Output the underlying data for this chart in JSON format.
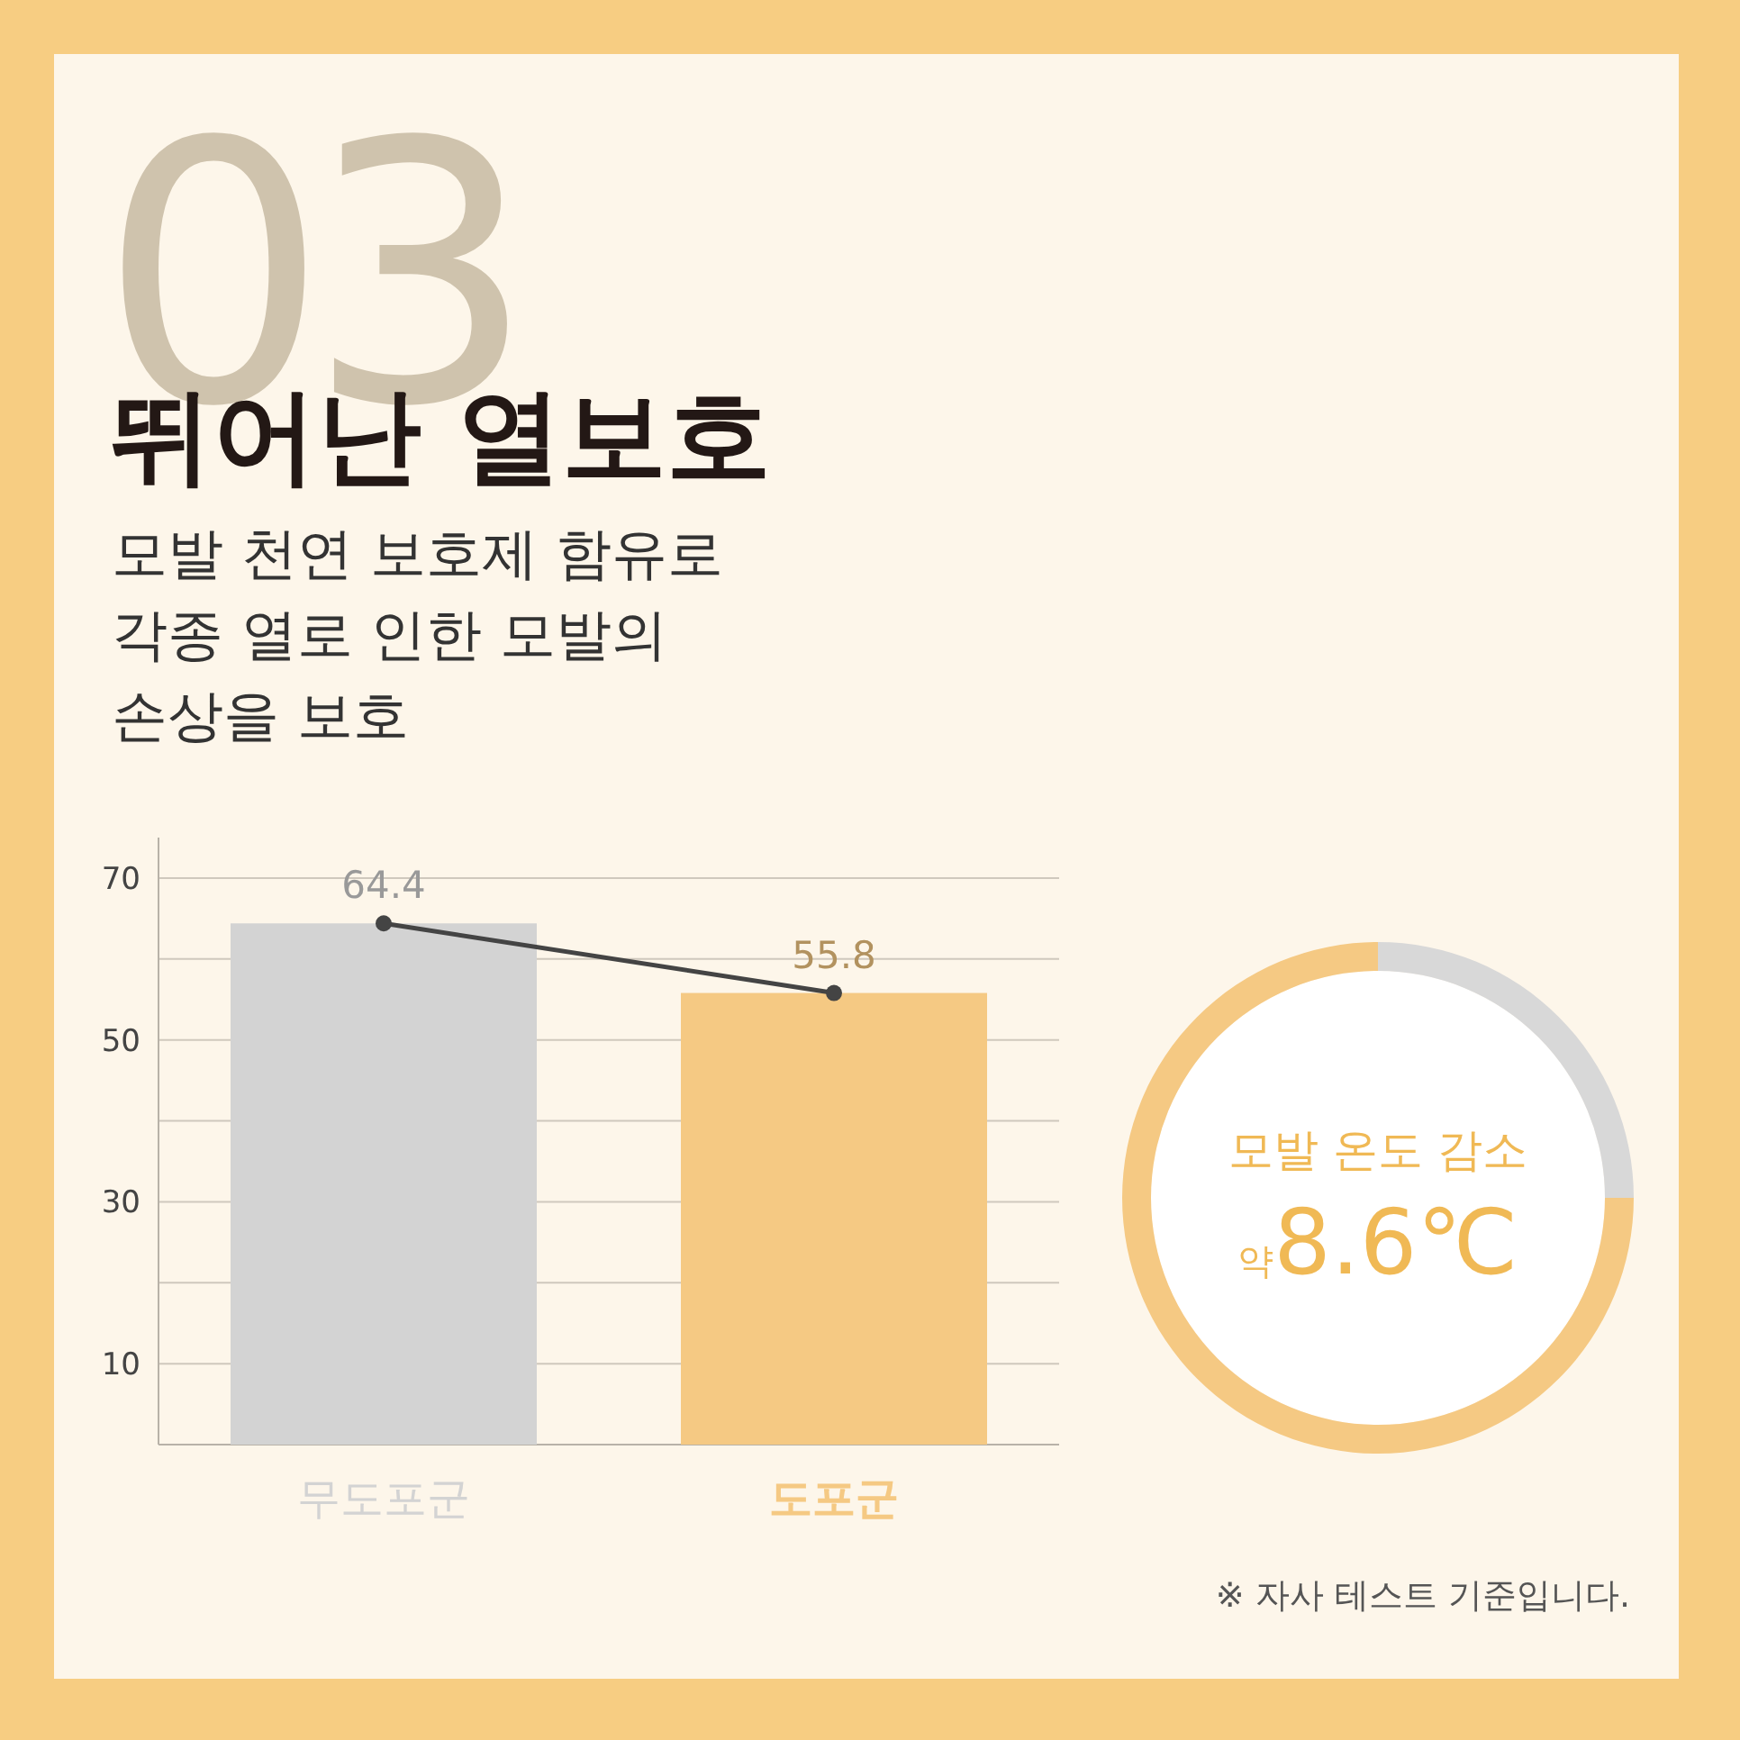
{
  "chart_data": [
    {
      "type": "bar",
      "title": "뛰어난 열보호",
      "subtitle": "모발 천연 보호제 함유로\n각종 열로 인한 모발의\n손상을 보호",
      "categories": [
        "무도포군",
        "도포군"
      ],
      "series": [
        {
          "type": "bar",
          "colors": [
            "#d3d3d3",
            "#f5c983"
          ],
          "values": [
            64.4,
            55.8
          ]
        },
        {
          "type": "line",
          "color": "#444444",
          "values": [
            64.4,
            55.8
          ],
          "marker": "circle"
        }
      ],
      "value_labels": [
        "64.4",
        "55.8"
      ],
      "ylim": [
        0,
        75
      ],
      "yticks": [
        10,
        {
          "value": 20,
          "label": null
        },
        30,
        {
          "value": 40,
          "label": null
        },
        50,
        {
          "value": 60,
          "label": null
        },
        70
      ],
      "grid": "y",
      "annotations": [
        "03",
        "※ 자사 테스트 기준입니다."
      ]
    },
    {
      "type": "donut",
      "categories": [
        null,
        null
      ],
      "values": [
        25,
        75
      ],
      "colors": [
        "#d8d8d8",
        "#f5c983"
      ],
      "annotations": [
        "모발 온도 감소",
        "약",
        "8.6℃"
      ]
    }
  ]
}
